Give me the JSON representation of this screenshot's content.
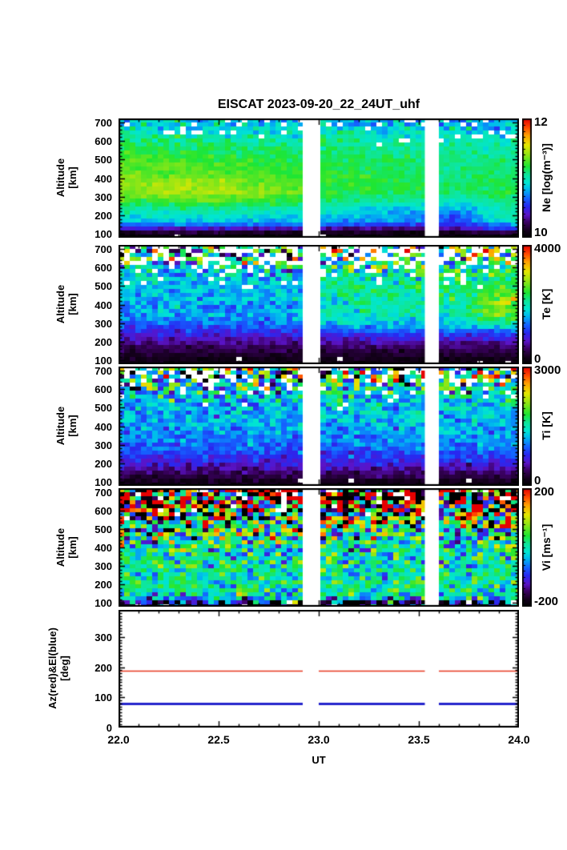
{
  "title": "EISCAT 2023-09-20_22_24UT_uhf",
  "axes": {
    "x_label": "UT",
    "x_ticks": [
      {
        "t": 22.0,
        "label": "22.0"
      },
      {
        "t": 22.5,
        "label": "22.5"
      },
      {
        "t": 23.0,
        "label": "23.0"
      },
      {
        "t": 23.5,
        "label": "23.5"
      },
      {
        "t": 24.0,
        "label": "24.0"
      }
    ],
    "alt_label_line1": "Altitude",
    "alt_label_line2": "[km]",
    "alt_ticks": [
      100,
      200,
      300,
      400,
      500,
      600,
      700
    ],
    "deg_label_line1": "Az(red)&El(blue)",
    "deg_label_line2": "[deg]",
    "deg_ticks": [
      0,
      100,
      200,
      300
    ]
  },
  "data_gaps_ut": [
    [
      22.92,
      23.0
    ],
    [
      23.53,
      23.6
    ]
  ],
  "colormap": [
    [
      0.0,
      "#000000"
    ],
    [
      0.06,
      "#16001e"
    ],
    [
      0.13,
      "#3c0064"
    ],
    [
      0.19,
      "#5a14c8"
    ],
    [
      0.26,
      "#2828f0"
    ],
    [
      0.33,
      "#1464ff"
    ],
    [
      0.4,
      "#00b4f0"
    ],
    [
      0.46,
      "#00e6d2"
    ],
    [
      0.53,
      "#0ee69b"
    ],
    [
      0.6,
      "#1ee632"
    ],
    [
      0.7,
      "#96e614"
    ],
    [
      0.78,
      "#e6e600"
    ],
    [
      0.86,
      "#ffa000"
    ],
    [
      0.93,
      "#ff4600"
    ],
    [
      1.0,
      "#e60000"
    ]
  ],
  "chart_data": [
    {
      "type": "heatmap",
      "name": "Ne",
      "colorbar": {
        "label": "Ne [log(m⁻³)]",
        "max": "12",
        "min": "10"
      },
      "range": [
        10,
        12
      ],
      "x_range": [
        22,
        24
      ],
      "alt_range": [
        80,
        720
      ],
      "alts": [
        100,
        125,
        160,
        200,
        240,
        280,
        325,
        375,
        425,
        475,
        525,
        575,
        625,
        675
      ],
      "times": [
        22.1,
        22.3,
        22.5,
        22.7,
        22.9,
        23.1,
        23.3,
        23.5,
        23.7,
        23.9
      ],
      "values": [
        [
          10.05,
          10.05,
          10.05,
          10.05,
          10.05,
          10.05,
          10.05,
          10.05,
          10.05,
          10.05
        ],
        [
          10.35,
          10.35,
          10.3,
          10.3,
          10.3,
          10.25,
          10.25,
          10.2,
          10.3,
          10.5
        ],
        [
          10.85,
          10.85,
          10.85,
          10.8,
          10.8,
          10.75,
          10.7,
          10.65,
          10.6,
          10.85
        ],
        [
          10.95,
          10.95,
          10.95,
          10.95,
          10.9,
          10.85,
          10.8,
          10.75,
          10.65,
          11.05
        ],
        [
          11.05,
          11.1,
          11.05,
          11.05,
          11.0,
          10.95,
          10.9,
          10.85,
          10.78,
          11.0
        ],
        [
          11.25,
          11.3,
          11.28,
          11.25,
          11.2,
          11.1,
          11.08,
          11.05,
          11.0,
          11.1
        ],
        [
          11.42,
          11.45,
          11.42,
          11.38,
          11.3,
          11.2,
          11.18,
          11.15,
          11.1,
          11.15
        ],
        [
          11.38,
          11.42,
          11.38,
          11.32,
          11.3,
          11.22,
          11.2,
          11.15,
          11.12,
          11.15
        ],
        [
          11.32,
          11.32,
          11.3,
          11.28,
          11.25,
          11.2,
          11.17,
          11.15,
          11.1,
          11.12
        ],
        [
          11.27,
          11.27,
          11.24,
          11.22,
          11.2,
          11.17,
          11.15,
          11.12,
          11.1,
          11.1
        ],
        [
          11.22,
          11.2,
          11.18,
          11.17,
          11.15,
          11.12,
          11.1,
          11.1,
          11.05,
          11.05
        ],
        [
          11.15,
          11.12,
          11.12,
          11.1,
          11.1,
          11.07,
          11.05,
          11.05,
          11.0,
          11.0
        ],
        [
          11.05,
          11.05,
          11.02,
          11.0,
          11.0,
          11.0,
          10.97,
          10.95,
          10.95,
          10.95
        ],
        [
          10.9,
          10.9,
          10.87,
          10.88,
          10.85,
          10.85,
          10.85,
          10.82,
          10.8,
          10.8
        ]
      ],
      "noise": [
        0.04,
        0.05,
        0.06,
        0.06,
        0.06,
        0.05,
        0.05,
        0.05,
        0.05,
        0.05,
        0.06,
        0.07,
        0.1,
        0.14
      ],
      "missing": [
        0.02,
        0,
        0,
        0,
        0,
        0,
        0,
        0,
        0,
        0,
        0,
        0.02,
        0.06,
        0.14
      ]
    },
    {
      "type": "heatmap",
      "name": "Te",
      "colorbar": {
        "label": "Te [K]",
        "max": "4000",
        "min": "0"
      },
      "range": [
        0,
        4000
      ],
      "x_range": [
        22,
        24
      ],
      "alt_range": [
        80,
        720
      ],
      "alts": [
        100,
        125,
        160,
        200,
        240,
        280,
        325,
        375,
        425,
        475,
        525,
        575,
        625,
        675
      ],
      "times": [
        22.1,
        22.3,
        22.5,
        22.7,
        22.9,
        23.1,
        23.3,
        23.5,
        23.7,
        23.9
      ],
      "values": [
        [
          150,
          150,
          150,
          150,
          150,
          150,
          150,
          150,
          150,
          150
        ],
        [
          260,
          260,
          260,
          260,
          260,
          260,
          260,
          260,
          260,
          260
        ],
        [
          420,
          420,
          420,
          420,
          420,
          420,
          420,
          420,
          420,
          420
        ],
        [
          650,
          650,
          650,
          650,
          650,
          650,
          650,
          650,
          650,
          650
        ],
        [
          900,
          900,
          900,
          900,
          950,
          1050,
          1050,
          1050,
          1050,
          1150
        ],
        [
          1200,
          1200,
          1200,
          1200,
          1280,
          1500,
          1500,
          1500,
          1550,
          1700
        ],
        [
          1450,
          1450,
          1450,
          1480,
          1550,
          1850,
          1850,
          1850,
          1950,
          2450
        ],
        [
          1550,
          1580,
          1550,
          1550,
          1620,
          2000,
          2000,
          2000,
          2100,
          2750
        ],
        [
          1600,
          1620,
          1600,
          1600,
          1680,
          2050,
          2050,
          2080,
          2100,
          2750
        ],
        [
          1650,
          1650,
          1650,
          1650,
          1720,
          2100,
          2080,
          2100,
          2100,
          2500
        ],
        [
          1700,
          1700,
          1700,
          1700,
          1750,
          2100,
          2100,
          2100,
          2100,
          2300
        ],
        [
          1750,
          1750,
          1750,
          1780,
          1800,
          2100,
          2100,
          2150,
          2150,
          2200
        ],
        [
          1850,
          1850,
          1850,
          1850,
          1880,
          2150,
          2150,
          2200,
          2200,
          2200
        ],
        [
          1950,
          1950,
          1950,
          1950,
          1980,
          2200,
          2200,
          2250,
          2250,
          2250
        ]
      ],
      "noise": [
        60,
        70,
        90,
        110,
        140,
        170,
        200,
        220,
        230,
        240,
        260,
        420,
        750,
        1100
      ],
      "missing": [
        0.02,
        0,
        0,
        0,
        0,
        0,
        0,
        0,
        0,
        0.02,
        0.05,
        0.12,
        0.3,
        0.45
      ]
    },
    {
      "type": "heatmap",
      "name": "Ti",
      "colorbar": {
        "label": "Ti [K]",
        "max": "3000",
        "min": "0"
      },
      "range": [
        0,
        3000
      ],
      "x_range": [
        22,
        24
      ],
      "alt_range": [
        80,
        720
      ],
      "alts": [
        100,
        125,
        160,
        200,
        240,
        280,
        325,
        375,
        425,
        475,
        525,
        575,
        625,
        675
      ],
      "times": [
        22.1,
        22.3,
        22.5,
        22.7,
        22.9,
        23.1,
        23.3,
        23.5,
        23.7,
        23.9
      ],
      "values": [
        [
          140,
          140,
          140,
          140,
          140,
          140,
          140,
          140,
          140,
          140
        ],
        [
          240,
          240,
          240,
          240,
          240,
          240,
          240,
          240,
          240,
          240
        ],
        [
          430,
          430,
          430,
          430,
          430,
          450,
          450,
          450,
          450,
          470
        ],
        [
          620,
          620,
          620,
          620,
          640,
          660,
          660,
          660,
          660,
          680
        ],
        [
          780,
          780,
          790,
          790,
          800,
          820,
          820,
          820,
          820,
          840
        ],
        [
          930,
          930,
          940,
          940,
          950,
          980,
          980,
          980,
          980,
          1000
        ],
        [
          1030,
          1040,
          1050,
          1050,
          1060,
          1080,
          1080,
          1080,
          1090,
          1100
        ],
        [
          1090,
          1100,
          1110,
          1110,
          1120,
          1150,
          1150,
          1150,
          1160,
          1180
        ],
        [
          1140,
          1150,
          1160,
          1170,
          1180,
          1200,
          1200,
          1210,
          1220,
          1250
        ],
        [
          1190,
          1200,
          1210,
          1220,
          1240,
          1260,
          1260,
          1270,
          1280,
          1300
        ],
        [
          1240,
          1250,
          1260,
          1280,
          1300,
          1320,
          1320,
          1330,
          1340,
          1350
        ],
        [
          1290,
          1300,
          1320,
          1340,
          1360,
          1380,
          1380,
          1390,
          1400,
          1400
        ],
        [
          1350,
          1360,
          1380,
          1400,
          1420,
          1450,
          1450,
          1450,
          1460,
          1450
        ],
        [
          1400,
          1420,
          1440,
          1460,
          1480,
          1500,
          1500,
          1500,
          1500,
          1500
        ]
      ],
      "noise": [
        50,
        70,
        100,
        120,
        130,
        140,
        150,
        160,
        180,
        200,
        260,
        420,
        700,
        950
      ],
      "missing": [
        0.02,
        0,
        0,
        0,
        0,
        0,
        0,
        0,
        0,
        0,
        0.02,
        0.06,
        0.14,
        0.25
      ]
    },
    {
      "type": "heatmap",
      "name": "Vi",
      "colorbar": {
        "label": "Vi [ms⁻¹]",
        "max": "200",
        "min": "-200"
      },
      "range": [
        -200,
        200
      ],
      "x_range": [
        22,
        24
      ],
      "alt_range": [
        80,
        720
      ],
      "alts": [
        100,
        125,
        160,
        200,
        240,
        280,
        325,
        375,
        425,
        475,
        525,
        575,
        625,
        675
      ],
      "times": [
        22.1,
        22.3,
        22.5,
        22.7,
        22.9,
        23.1,
        23.3,
        23.5,
        23.7,
        23.9
      ],
      "values": [
        [
          -170,
          -170,
          -170,
          -170,
          -170,
          -170,
          -170,
          -170,
          -170,
          -170
        ],
        [
          -20,
          -20,
          -20,
          -20,
          -20,
          -20,
          -20,
          -20,
          -20,
          -20
        ],
        [
          0,
          5,
          0,
          -5,
          0,
          5,
          0,
          -5,
          0,
          5
        ],
        [
          5,
          0,
          -5,
          0,
          5,
          0,
          -5,
          0,
          5,
          0
        ],
        [
          0,
          -5,
          0,
          5,
          0,
          -5,
          0,
          5,
          0,
          -5
        ],
        [
          0,
          5,
          0,
          0,
          -5,
          0,
          5,
          0,
          0,
          5
        ],
        [
          5,
          0,
          -5,
          0,
          5,
          0,
          0,
          -5,
          0,
          0
        ],
        [
          0,
          0,
          5,
          0,
          -5,
          0,
          5,
          0,
          -5,
          0
        ],
        [
          0,
          5,
          0,
          -5,
          0,
          5,
          0,
          0,
          5,
          0
        ],
        [
          5,
          0,
          0,
          5,
          0,
          -5,
          0,
          5,
          0,
          -5
        ],
        [
          0,
          -5,
          5,
          0,
          5,
          0,
          -5,
          0,
          5,
          0
        ],
        [
          0,
          5,
          0,
          -5,
          0,
          5,
          0,
          -5,
          0,
          5
        ],
        [
          0,
          0,
          -5,
          0,
          5,
          0,
          5,
          0,
          -5,
          0
        ],
        [
          0,
          5,
          0,
          5,
          0,
          -5,
          0,
          5,
          0,
          5
        ]
      ],
      "noise": [
        120,
        60,
        45,
        40,
        40,
        40,
        45,
        55,
        70,
        90,
        120,
        180,
        260,
        320
      ],
      "missing": [
        0.03,
        0,
        0,
        0,
        0,
        0,
        0,
        0,
        0,
        0,
        0.02,
        0.03,
        0.05,
        0.08
      ]
    },
    {
      "type": "line",
      "name": "AzEl",
      "x_range": [
        22,
        24
      ],
      "y_range": [
        0,
        390
      ],
      "series": [
        {
          "name": "Az",
          "color": "#e83820",
          "value": 187,
          "lw": 1.4
        },
        {
          "name": "El",
          "color": "#2424cc",
          "value": 78,
          "lw": 3
        }
      ]
    }
  ]
}
